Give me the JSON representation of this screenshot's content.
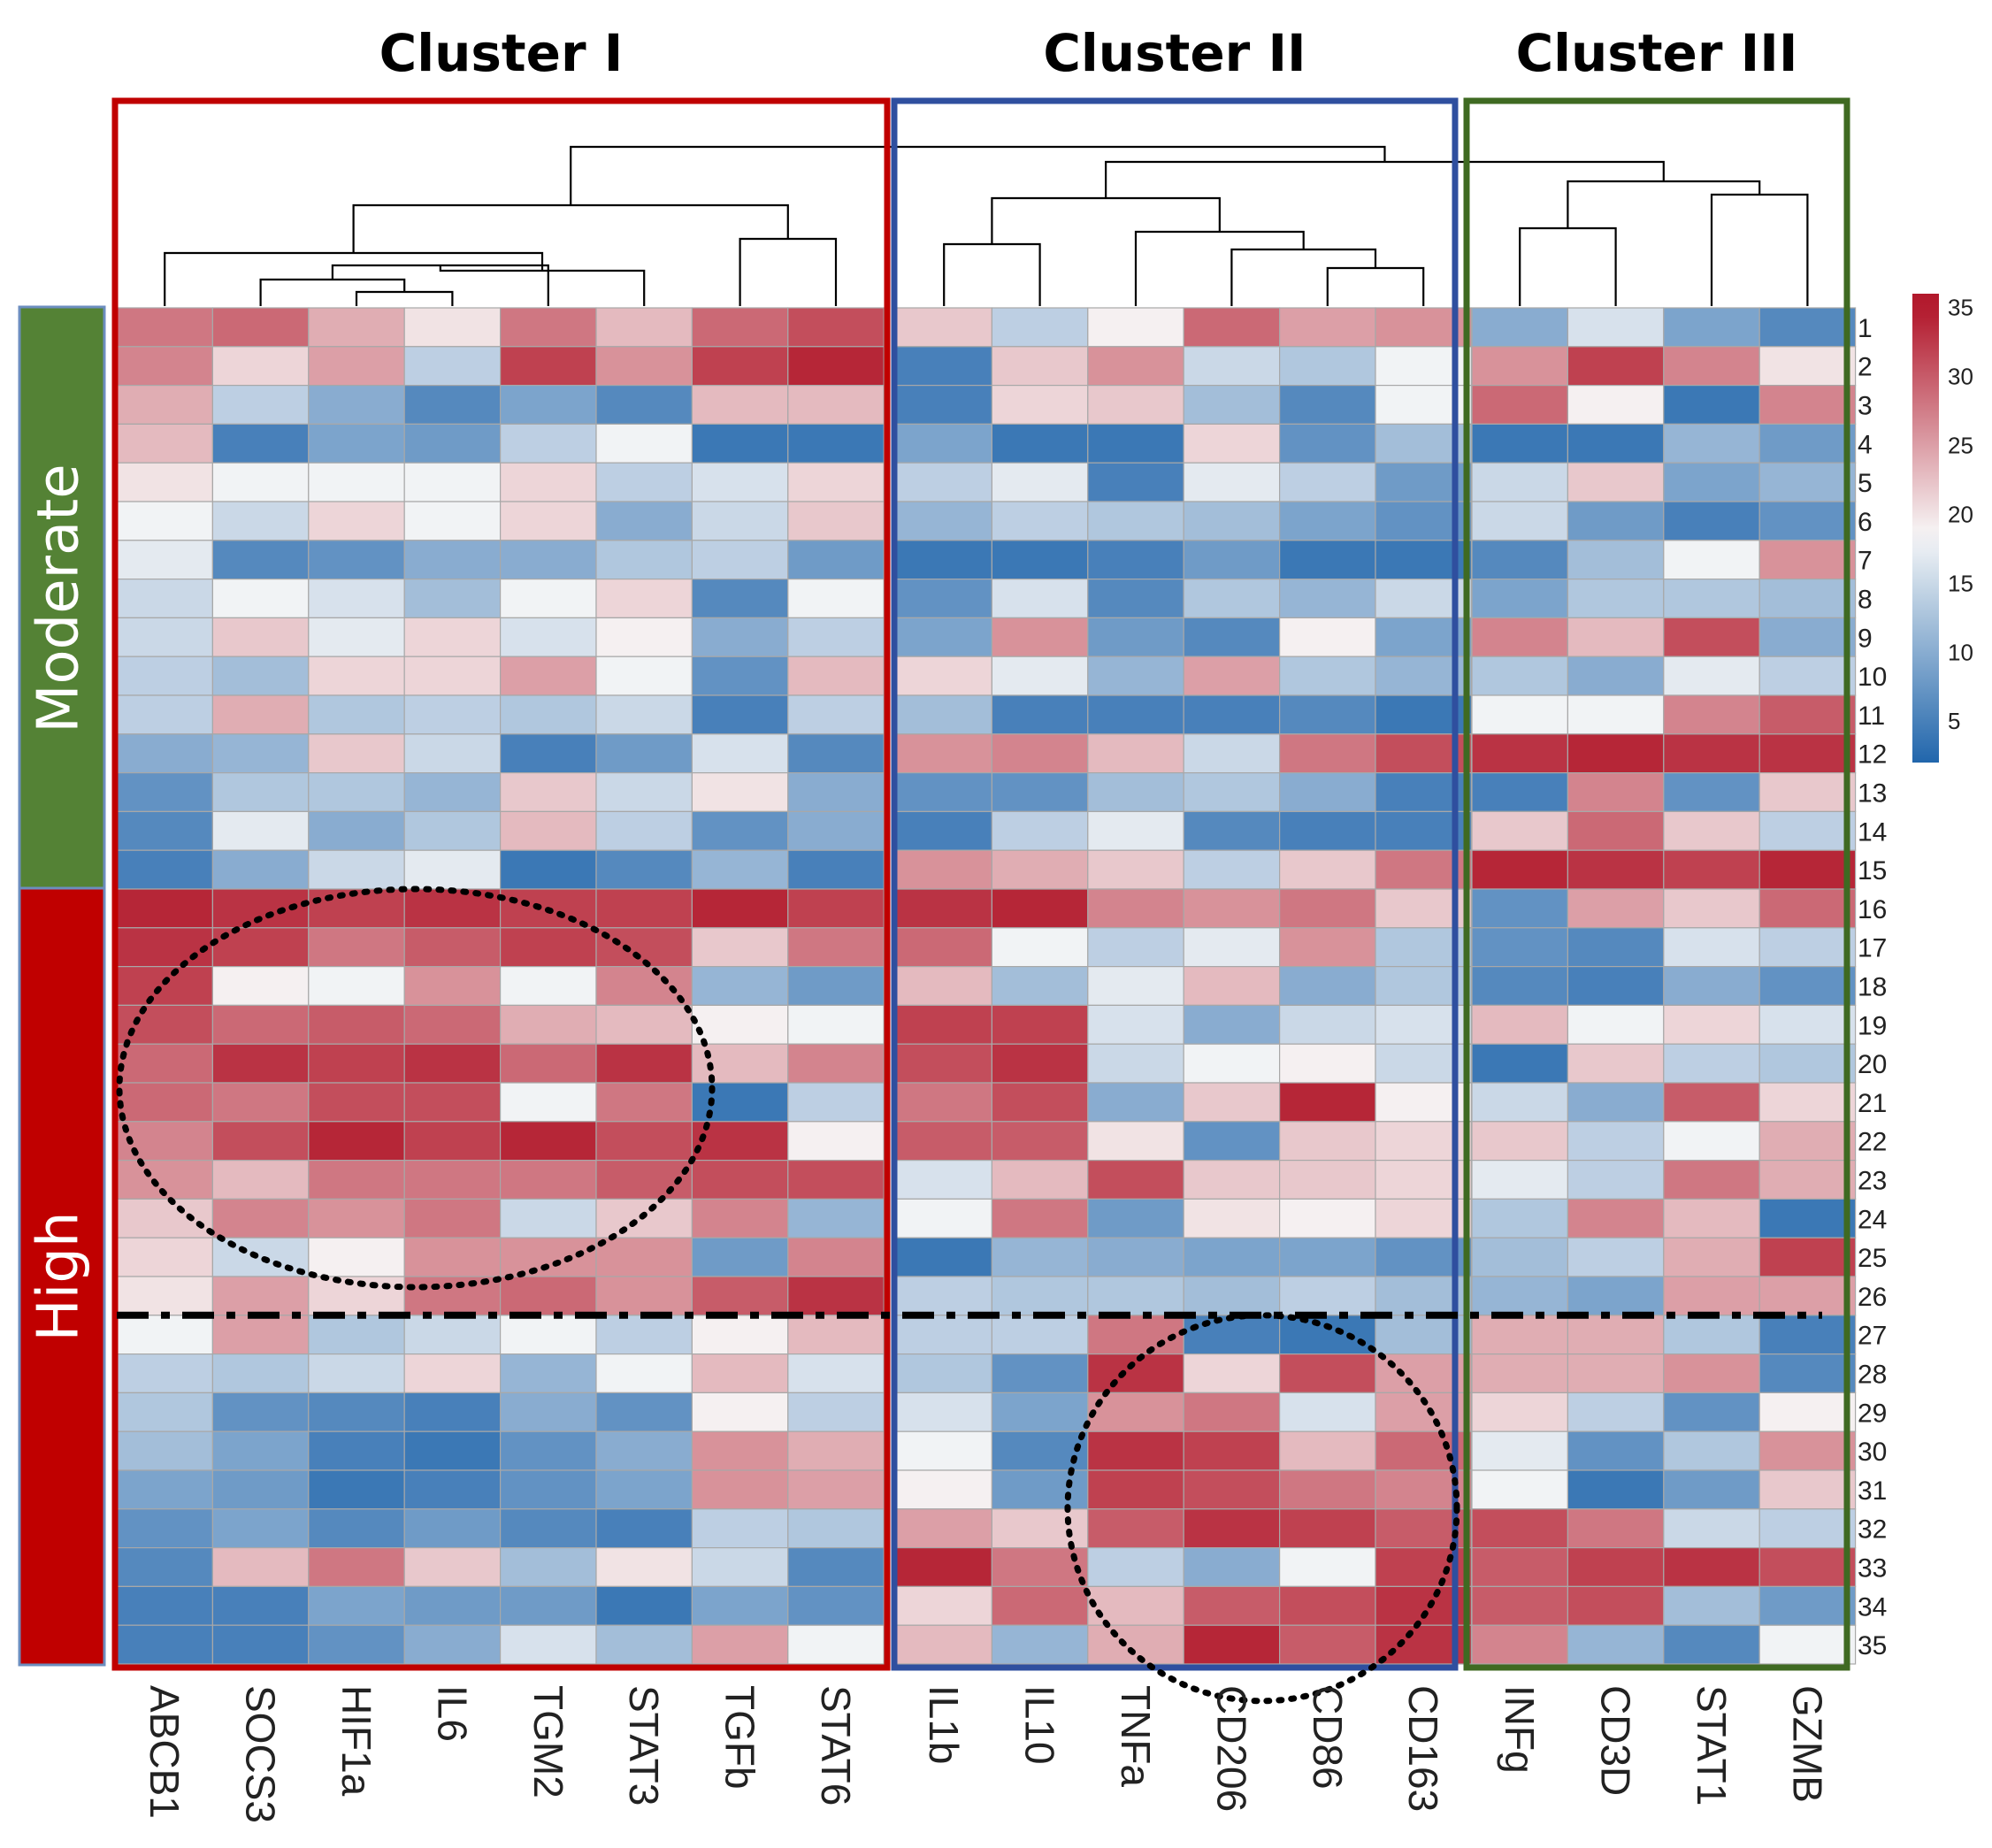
{
  "chart_data": {
    "type": "heatmap",
    "clusters": [
      {
        "name": "Cluster I",
        "genes": [
          "ABCB1",
          "SOCS3",
          "HIF1a",
          "IL6",
          "TGM2",
          "STAT3",
          "TGFb",
          "STAT6"
        ],
        "color": "#c00000"
      },
      {
        "name": "Cluster II",
        "genes": [
          "IL1b",
          "IL10",
          "TNFa",
          "CD206",
          "CD86",
          "CD163"
        ],
        "color": "#2f4f9f"
      },
      {
        "name": "Cluster III",
        "genes": [
          "INFg",
          "CD3D",
          "STAT1",
          "GZMB"
        ],
        "color": "#3f6a22"
      }
    ],
    "columns": [
      "ABCB1",
      "SOCS3",
      "HIF1a",
      "IL6",
      "TGM2",
      "STAT3",
      "TGFb",
      "STAT6",
      "IL1b",
      "IL10",
      "TNFa",
      "CD206",
      "CD86",
      "CD163",
      "INFg",
      "CD3D",
      "STAT1",
      "GZMB"
    ],
    "rows": [
      "1",
      "2",
      "3",
      "4",
      "5",
      "6",
      "7",
      "8",
      "9",
      "10",
      "11",
      "12",
      "13",
      "14",
      "15",
      "16",
      "17",
      "18",
      "19",
      "20",
      "21",
      "22",
      "23",
      "24",
      "25",
      "26",
      "27",
      "28",
      "29",
      "30",
      "31",
      "32",
      "33",
      "34",
      "35"
    ],
    "row_groups": [
      {
        "label": "Moderate",
        "rows": [
          1,
          15
        ],
        "color": "#548235"
      },
      {
        "label": "High",
        "rows": [
          16,
          35
        ],
        "color": "#c00000"
      }
    ],
    "values": [
      [
        28,
        29,
        24,
        20,
        28,
        23,
        29,
        31,
        22,
        14,
        19,
        29,
        25,
        26,
        10,
        16,
        9,
        6
      ],
      [
        27,
        21,
        25,
        14,
        32,
        26,
        32,
        34,
        5,
        22,
        26,
        15,
        13,
        18,
        26,
        32,
        27,
        20
      ],
      [
        24,
        14,
        10,
        6,
        9,
        6,
        23,
        23,
        5,
        21,
        22,
        12,
        6,
        18,
        29,
        19,
        4,
        27
      ],
      [
        23,
        5,
        9,
        8,
        14,
        18,
        4,
        4,
        9,
        4,
        4,
        21,
        7,
        12,
        4,
        4,
        11,
        8
      ],
      [
        20,
        18,
        18,
        18,
        21,
        14,
        16,
        21,
        14,
        17,
        5,
        17,
        14,
        8,
        15,
        22,
        9,
        11
      ],
      [
        18,
        15,
        21,
        18,
        21,
        10,
        15,
        22,
        11,
        14,
        13,
        12,
        9,
        7,
        15,
        8,
        5,
        7
      ],
      [
        17,
        6,
        7,
        10,
        10,
        13,
        14,
        8,
        4,
        4,
        5,
        8,
        4,
        4,
        6,
        12,
        18,
        26
      ],
      [
        15,
        18,
        16,
        12,
        18,
        21,
        6,
        18,
        7,
        16,
        6,
        13,
        11,
        15,
        9,
        13,
        13,
        12
      ],
      [
        15,
        22,
        17,
        21,
        16,
        19,
        10,
        14,
        9,
        26,
        8,
        6,
        19,
        9,
        27,
        23,
        31,
        10
      ],
      [
        14,
        12,
        21,
        21,
        25,
        18,
        7,
        23,
        21,
        17,
        11,
        25,
        13,
        11,
        13,
        10,
        17,
        14
      ],
      [
        14,
        24,
        13,
        14,
        13,
        15,
        5,
        14,
        12,
        5,
        5,
        5,
        6,
        4,
        18,
        18,
        27,
        30
      ],
      [
        10,
        11,
        22,
        15,
        5,
        8,
        16,
        6,
        26,
        27,
        23,
        15,
        28,
        31,
        33,
        34,
        33,
        33
      ],
      [
        7,
        13,
        13,
        11,
        22,
        15,
        20,
        10,
        7,
        7,
        12,
        13,
        10,
        5,
        5,
        27,
        7,
        22
      ],
      [
        6,
        17,
        10,
        13,
        23,
        14,
        7,
        10,
        5,
        14,
        17,
        6,
        5,
        5,
        22,
        29,
        22,
        14
      ],
      [
        5,
        10,
        15,
        17,
        4,
        6,
        11,
        5,
        26,
        24,
        22,
        14,
        22,
        28,
        34,
        33,
        32,
        34
      ],
      [
        34,
        33,
        32,
        33,
        32,
        32,
        34,
        32,
        33,
        34,
        27,
        26,
        28,
        22,
        7,
        25,
        22,
        29
      ],
      [
        33,
        32,
        28,
        30,
        32,
        31,
        22,
        28,
        29,
        18,
        14,
        17,
        26,
        13,
        7,
        6,
        16,
        14
      ],
      [
        32,
        19,
        18,
        26,
        18,
        27,
        11,
        8,
        23,
        12,
        17,
        23,
        10,
        13,
        6,
        5,
        10,
        7
      ],
      [
        31,
        29,
        30,
        29,
        24,
        23,
        19,
        18,
        32,
        32,
        16,
        10,
        15,
        16,
        23,
        18,
        21,
        16
      ],
      [
        29,
        33,
        32,
        33,
        29,
        33,
        23,
        27,
        31,
        33,
        15,
        18,
        19,
        15,
        4,
        22,
        14,
        13
      ],
      [
        29,
        28,
        31,
        31,
        18,
        28,
        4,
        14,
        28,
        31,
        10,
        22,
        34,
        19,
        15,
        10,
        30,
        21
      ],
      [
        27,
        31,
        34,
        32,
        34,
        31,
        33,
        19,
        30,
        30,
        20,
        7,
        22,
        21,
        22,
        14,
        18,
        24
      ],
      [
        26,
        23,
        28,
        28,
        28,
        30,
        31,
        31,
        16,
        23,
        31,
        22,
        22,
        21,
        17,
        14,
        28,
        24
      ],
      [
        22,
        27,
        26,
        28,
        15,
        22,
        27,
        11,
        18,
        28,
        8,
        20,
        19,
        21,
        13,
        27,
        23,
        4
      ],
      [
        21,
        15,
        19,
        26,
        26,
        26,
        8,
        27,
        4,
        11,
        10,
        9,
        9,
        7,
        12,
        14,
        24,
        32
      ],
      [
        20,
        25,
        21,
        28,
        29,
        26,
        30,
        33,
        14,
        13,
        13,
        12,
        14,
        12,
        11,
        9,
        25,
        25
      ],
      [
        18,
        25,
        13,
        15,
        18,
        14,
        19,
        23,
        14,
        14,
        28,
        5,
        4,
        12,
        24,
        24,
        13,
        5
      ],
      [
        14,
        13,
        15,
        21,
        11,
        18,
        23,
        16,
        13,
        7,
        33,
        21,
        31,
        25,
        24,
        24,
        26,
        6
      ],
      [
        13,
        7,
        6,
        5,
        10,
        7,
        19,
        14,
        16,
        9,
        26,
        28,
        16,
        25,
        21,
        14,
        7,
        19
      ],
      [
        12,
        9,
        5,
        4,
        7,
        10,
        26,
        24,
        18,
        6,
        33,
        32,
        23,
        29,
        17,
        7,
        13,
        26
      ],
      [
        9,
        8,
        4,
        5,
        7,
        9,
        26,
        25,
        19,
        8,
        32,
        31,
        28,
        27,
        18,
        4,
        8,
        22
      ],
      [
        7,
        9,
        6,
        8,
        6,
        5,
        14,
        13,
        25,
        22,
        30,
        33,
        32,
        30,
        31,
        28,
        15,
        14
      ],
      [
        6,
        23,
        28,
        22,
        12,
        20,
        15,
        6,
        34,
        28,
        14,
        10,
        18,
        32,
        30,
        32,
        33,
        31
      ],
      [
        5,
        5,
        9,
        8,
        8,
        4,
        9,
        7,
        21,
        29,
        23,
        30,
        31,
        33,
        30,
        31,
        12,
        8
      ],
      [
        5,
        5,
        7,
        10,
        16,
        12,
        25,
        18,
        23,
        11,
        24,
        34,
        30,
        33,
        27,
        11,
        6,
        18
      ]
    ],
    "color_scale": {
      "min": 2,
      "max": 35,
      "low_color": "#2166ac",
      "mid_color": "#f7f7f7",
      "high_color": "#b2182b",
      "midpoint": 18.5
    },
    "legend": {
      "ticks": [
        "35",
        "30",
        "25",
        "20",
        "15",
        "10",
        "5"
      ],
      "tick_values": [
        35,
        30,
        25,
        20,
        15,
        10,
        5
      ],
      "range": [
        2,
        36
      ]
    },
    "annotations": [
      "dotted ellipse over Cluster I genes in High rows 16-26",
      "dotted ellipse over TNFa, CD206, CD86, CD163 in High rows 27-35",
      "dashed divider between rows 26 and 27"
    ]
  }
}
